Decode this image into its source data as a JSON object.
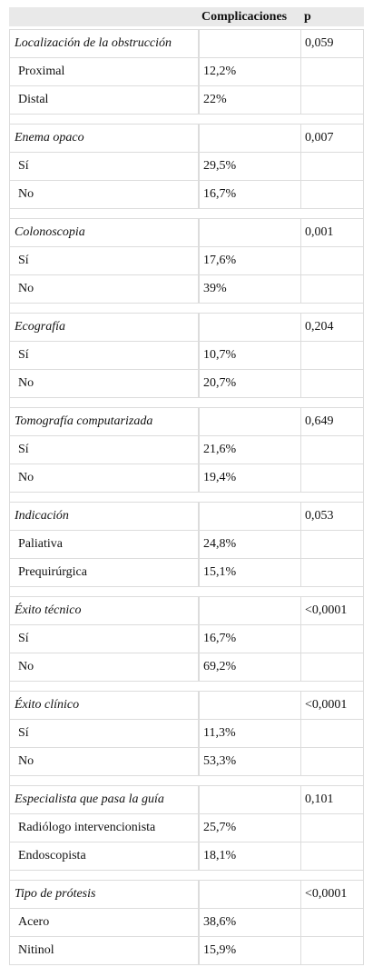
{
  "table": {
    "header": [
      "Complicaciones",
      "p"
    ],
    "groups": [
      {
        "title": "Localización de la obstrucción",
        "p": "0,059",
        "rows": [
          {
            "label": "Proximal",
            "value": "12,2%"
          },
          {
            "label": "Distal",
            "value": "22%"
          }
        ]
      },
      {
        "title": "Enema opaco",
        "p": "0,007",
        "rows": [
          {
            "label": "Sí",
            "value": "29,5%"
          },
          {
            "label": "No",
            "value": "16,7%"
          }
        ]
      },
      {
        "title": "Colonoscopia",
        "p": "0,001",
        "rows": [
          {
            "label": "Sí",
            "value": "17,6%"
          },
          {
            "label": "No",
            "value": "39%"
          }
        ]
      },
      {
        "title": "Ecografía",
        "p": "0,204",
        "rows": [
          {
            "label": "Sí",
            "value": "10,7%"
          },
          {
            "label": "No",
            "value": "20,7%"
          }
        ]
      },
      {
        "title": "Tomografía computarizada",
        "p": "0,649",
        "rows": [
          {
            "label": "Sí",
            "value": "21,6%"
          },
          {
            "label": "No",
            "value": "19,4%"
          }
        ]
      },
      {
        "title": "Indicación",
        "p": "0,053",
        "rows": [
          {
            "label": "Paliativa",
            "value": "24,8%"
          },
          {
            "label": "Prequirúrgica",
            "value": "15,1%"
          }
        ]
      },
      {
        "title": "Éxito técnico",
        "p": "<0,0001",
        "rows": [
          {
            "label": "Sí",
            "value": "16,7%"
          },
          {
            "label": "No",
            "value": "69,2%"
          }
        ]
      },
      {
        "title": "Éxito clínico",
        "p": "<0,0001",
        "rows": [
          {
            "label": "Sí",
            "value": "11,3%"
          },
          {
            "label": "No",
            "value": "53,3%"
          }
        ]
      },
      {
        "title": "Especialista que pasa la guía",
        "p": "0,101",
        "rows": [
          {
            "label": "Radiólogo intervencionista",
            "value": "25,7%"
          },
          {
            "label": "Endoscopista",
            "value": "18,1%"
          }
        ]
      },
      {
        "title": "Tipo de prótesis",
        "p": "<0,0001",
        "rows": [
          {
            "label": "Acero",
            "value": "38,6%"
          },
          {
            "label": "Nitinol",
            "value": "15,9%"
          }
        ]
      }
    ]
  }
}
